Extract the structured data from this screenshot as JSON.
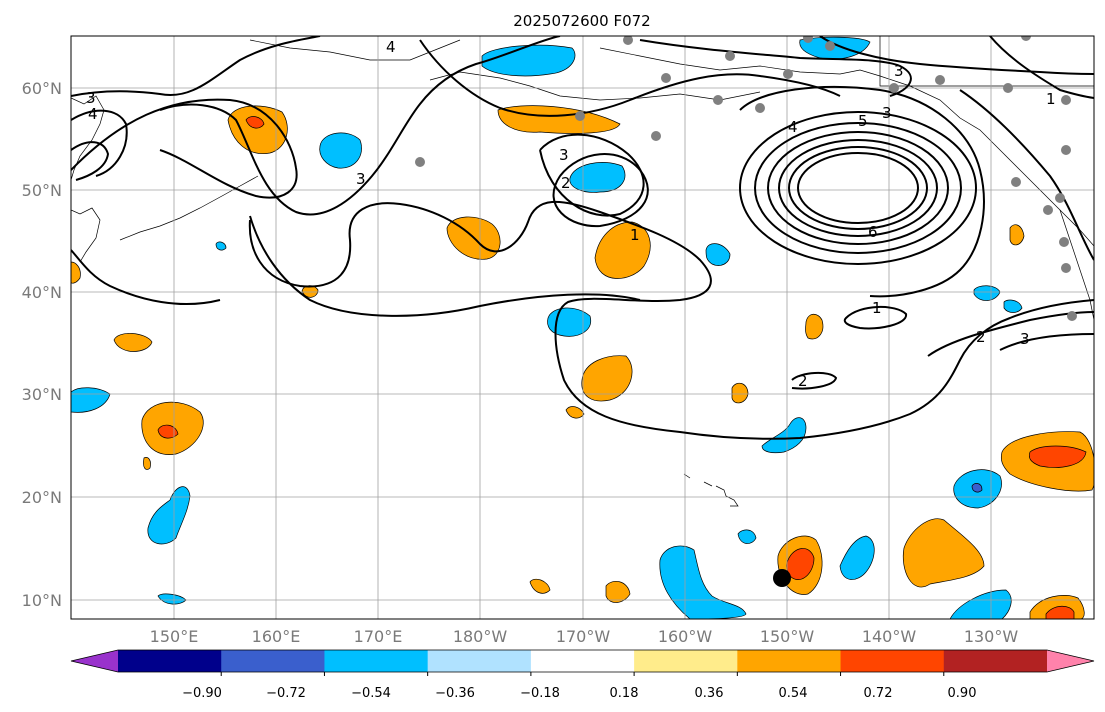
{
  "title": "2025072600 F072",
  "lat_labels": [
    "10°N",
    "20°N",
    "30°N",
    "40°N",
    "50°N",
    "60°N"
  ],
  "lon_labels": [
    "150°E",
    "160°E",
    "170°E",
    "180°W",
    "170°W",
    "160°W",
    "150°W",
    "140°W",
    "130°W"
  ],
  "contour_labels": [
    "4",
    "3",
    "4",
    "3",
    "3",
    "2",
    "3",
    "4",
    "3",
    "5",
    "6",
    "1",
    "2",
    "3",
    "1",
    "2",
    "1"
  ],
  "colorbar": {
    "ticks": [
      "−0.90",
      "−0.72",
      "−0.54",
      "−0.36",
      "−0.18",
      "0.18",
      "0.36",
      "0.54",
      "0.72",
      "0.90"
    ],
    "colors": [
      "#9932cc",
      "#00008b",
      "#3a5fcd",
      "#00bfff",
      "#b0e2ff",
      "#ffffff",
      "#ffec8b",
      "#ffa500",
      "#ff4500",
      "#b22222",
      "#ff82ab"
    ]
  },
  "grid_color": "#a0a0a0"
}
